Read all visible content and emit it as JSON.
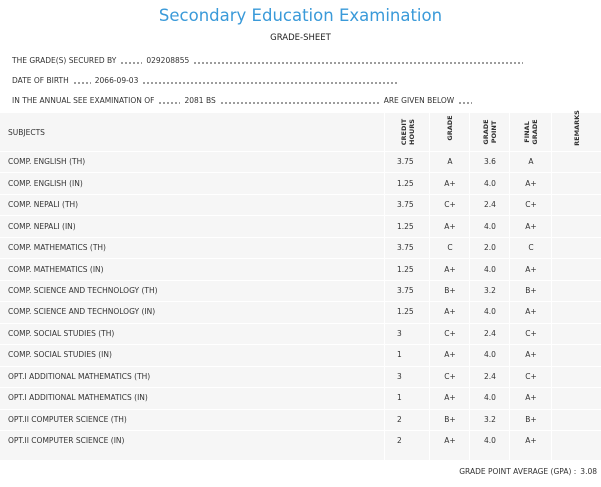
{
  "header": {
    "title": "Secondary Education Examination",
    "subtitle": "GRADE-SHEET"
  },
  "info": [
    {
      "label": "THE GRADE(S) SECURED BY",
      "value": "029208855"
    },
    {
      "label": "DATE OF BIRTH",
      "value": "2066-09-03"
    },
    {
      "label": "IN THE ANNUAL SEE EXAMINATION OF",
      "value": "2081 BS",
      "suffix": "ARE GIVEN BELOW"
    }
  ],
  "table": {
    "columns": [
      "SUBJECTS",
      "CREDIT HOURS",
      "GRADE",
      "GRADE POINT",
      "FINAL GRADE",
      "REMARKS"
    ],
    "rows": [
      [
        "COMP. ENGLISH (TH)",
        "3.75",
        "A",
        "3.6",
        "A"
      ],
      [
        "COMP. ENGLISH (IN)",
        "1.25",
        "A+",
        "4.0",
        "A+"
      ],
      [
        "COMP. NEPALI (TH)",
        "3.75",
        "C+",
        "2.4",
        "C+"
      ],
      [
        "COMP. NEPALI (IN)",
        "1.25",
        "A+",
        "4.0",
        "A+"
      ],
      [
        "COMP. MATHEMATICS (TH)",
        "3.75",
        "C",
        "2.0",
        "C"
      ],
      [
        "COMP. MATHEMATICS (IN)",
        "1.25",
        "A+",
        "4.0",
        "A+"
      ],
      [
        "COMP. SCIENCE AND TECHNOLOGY (TH)",
        "3.75",
        "B+",
        "3.2",
        "B+"
      ],
      [
        "COMP. SCIENCE AND TECHNOLOGY (IN)",
        "1.25",
        "A+",
        "4.0",
        "A+"
      ],
      [
        "COMP. SOCIAL STUDIES (TH)",
        "3",
        "C+",
        "2.4",
        "C+"
      ],
      [
        "COMP. SOCIAL STUDIES (IN)",
        "1",
        "A+",
        "4.0",
        "A+"
      ],
      [
        "OPT.I ADDITIONAL MATHEMATICS (TH)",
        "3",
        "C+",
        "2.4",
        "C+"
      ],
      [
        "OPT.I ADDITIONAL MATHEMATICS (IN)",
        "1",
        "A+",
        "4.0",
        "A+"
      ],
      [
        "OPT.II COMPUTER SCIENCE (TH)",
        "2",
        "B+",
        "3.2",
        "B+"
      ],
      [
        "OPT.II COMPUTER SCIENCE (IN)",
        "2",
        "A+",
        "4.0",
        "A+"
      ]
    ]
  },
  "gpa": {
    "label": "GRADE POINT AVERAGE (GPA) :",
    "value": "3.08"
  }
}
